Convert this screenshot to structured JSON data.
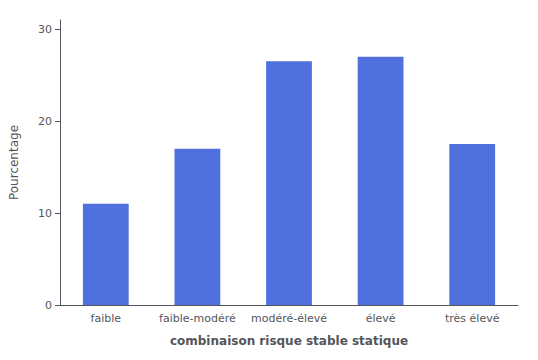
{
  "chart_data": {
    "type": "bar",
    "categories": [
      "faible",
      "faible-modéré",
      "modéré-élevé",
      "élevé",
      "très élevé"
    ],
    "values": [
      11,
      17,
      26.5,
      27,
      17.5
    ],
    "xlabel": "combinaison risque stable statique",
    "ylabel": "Pourcentage",
    "ylim": [
      0,
      31
    ],
    "yticks": [
      0,
      10,
      20,
      30
    ],
    "grid": false
  }
}
